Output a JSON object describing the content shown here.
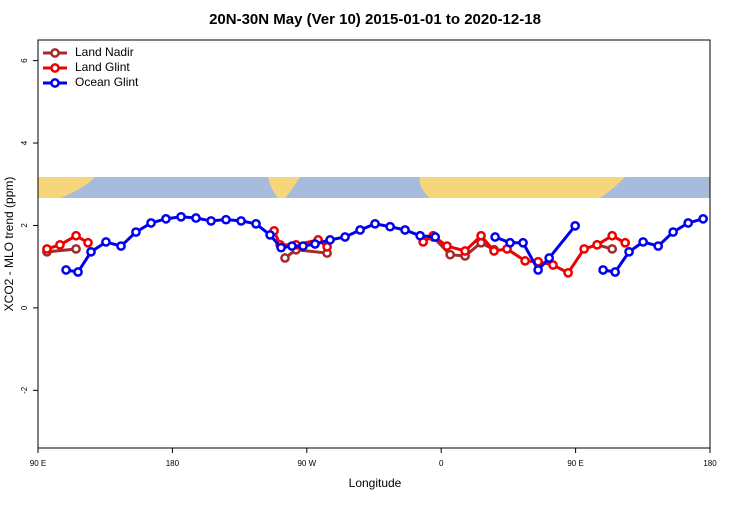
{
  "chart_data": {
    "type": "line",
    "title": "20N-30N May (Ver 10)   2015-01-01 to 2020-12-18",
    "x_label": "Longitude",
    "y_label": "XCO2 - MLO trend (ppm)",
    "xlim": [
      90,
      540
    ],
    "ylim": [
      -3.4,
      6.5
    ],
    "xticks": [
      {
        "value": 90,
        "label": "90 E"
      },
      180,
      {
        "value": 270,
        "label": "90 W"
      },
      {
        "value": 360,
        "label": "0"
      },
      {
        "value": 450,
        "label": "90 E"
      },
      {
        "value": 540,
        "label": "180"
      }
    ],
    "yticks": [
      -2,
      0,
      2,
      4,
      6
    ],
    "legend": "top-left",
    "series": [
      {
        "name": "Land Nadir",
        "color": "#a52a2a",
        "x": [
          96,
          115.5,
          null,
          255.4,
          262.8,
          283.6,
          null,
          354.6,
          366,
          376,
          386.7,
          395.4,
          null,
          464.4,
          474.5
        ],
        "values": [
          1.36,
          1.43,
          null,
          1.21,
          1.41,
          1.33,
          null,
          1.72,
          1.29,
          1.26,
          1.58,
          1.41,
          null,
          1.53,
          1.43
        ]
      },
      {
        "name": "Land Glint",
        "color": "#ee0000",
        "x": [
          96,
          104.7,
          115.5,
          123.5,
          null,
          248.1,
          252.1,
          262.8,
          277.6,
          283.6,
          null,
          347.9,
          354.6,
          363.9,
          376,
          386.7,
          395.4,
          404.1,
          416.2,
          424.9,
          434.9,
          445,
          455.7,
          464.4,
          474.5,
          483.2
        ],
        "values": [
          1.43,
          1.53,
          1.75,
          1.58,
          null,
          1.87,
          1.53,
          1.53,
          1.65,
          1.48,
          null,
          1.6,
          1.75,
          1.5,
          1.38,
          1.75,
          1.38,
          1.43,
          1.14,
          1.12,
          1.04,
          0.85,
          1.43,
          1.53,
          1.75,
          1.58
        ]
      },
      {
        "name": "Ocean Glint",
        "color": "#0000ee",
        "x": [
          108.8,
          116.8,
          125.5,
          135.5,
          145.6,
          155.6,
          165.7,
          175.7,
          185.8,
          195.8,
          205.9,
          215.9,
          226,
          236,
          245.4,
          252.8,
          260.1,
          267.5,
          275.5,
          285.6,
          295.6,
          305.7,
          315.7,
          325.8,
          335.8,
          345.9,
          356,
          null,
          396.1,
          406.1,
          414.8,
          424.9,
          432.3,
          449.7,
          null,
          468.4,
          476.5,
          485.8,
          495.2,
          505.3,
          515.3,
          525.4,
          535.4
        ],
        "values": [
          0.92,
          0.87,
          1.36,
          1.6,
          1.5,
          1.84,
          2.06,
          2.16,
          2.21,
          2.18,
          2.11,
          2.14,
          2.11,
          2.04,
          1.77,
          1.46,
          1.5,
          1.5,
          1.55,
          1.65,
          1.72,
          1.89,
          2.04,
          1.97,
          1.89,
          1.75,
          1.72,
          null,
          1.72,
          1.58,
          1.58,
          0.92,
          1.21,
          1.99,
          null,
          0.92,
          0.87,
          1.36,
          1.6,
          1.5,
          1.84,
          2.06,
          2.16
        ]
      }
    ]
  }
}
